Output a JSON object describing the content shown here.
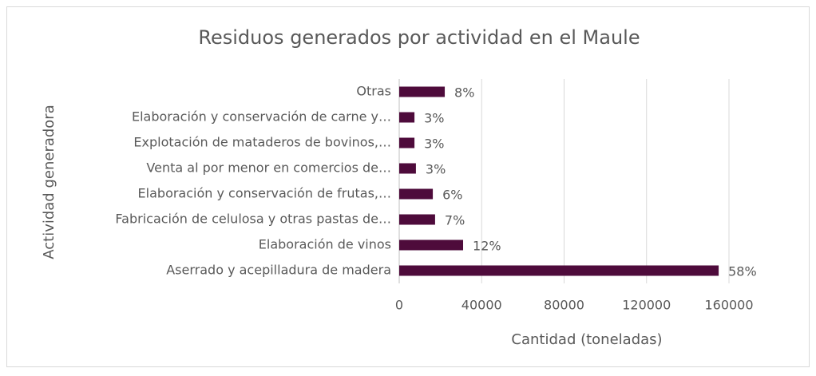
{
  "chart_data": {
    "type": "bar",
    "orientation": "horizontal",
    "title": "Residuos generados por actividad en el Maule",
    "x_label": "Cantidad (toneladas)",
    "y_label": "Actividad generadora",
    "categories": [
      "Aserrado y acepilladura de madera",
      "Elaboración de vinos",
      "Fabricación de celulosa y otras pastas de…",
      "Elaboración y conservación de frutas,…",
      "Venta al por menor en comercios de…",
      "Explotación de mataderos de bovinos,…",
      "Elaboración y conservación de carne y…",
      "Otras"
    ],
    "values": [
      155000,
      31000,
      17400,
      16300,
      8100,
      7400,
      7400,
      22100
    ],
    "value_labels": [
      "58%",
      "12%",
      "7%",
      "6%",
      "3%",
      "3%",
      "3%",
      "8%"
    ],
    "color": "#4e0b3b",
    "xlim": [
      0,
      160000
    ],
    "xticks": [
      0,
      40000,
      80000,
      120000,
      160000
    ],
    "grid": true
  }
}
